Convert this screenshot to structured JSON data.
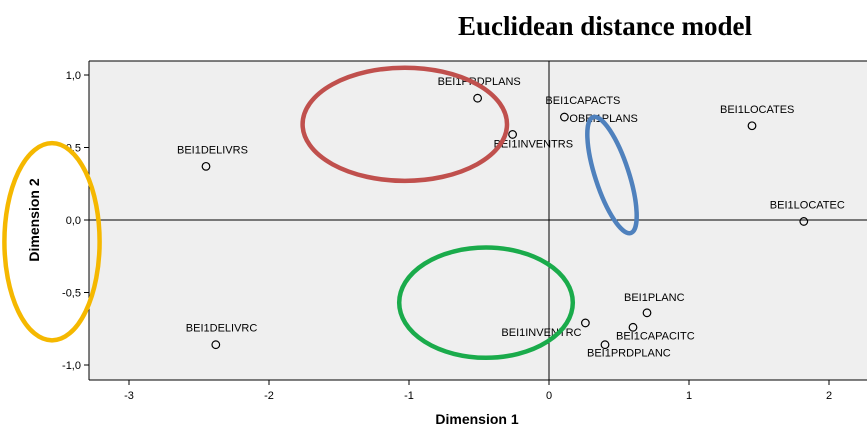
{
  "chart_data": {
    "type": "scatter",
    "title": "Euclidean distance model",
    "xlabel": "Dimension 1",
    "ylabel": "Dimension 2",
    "xlim": [
      -3.3,
      2.1
    ],
    "ylim": [
      -1.1,
      1.1
    ],
    "grid": false,
    "x_ticks": [
      -3,
      -2,
      -1,
      0,
      1,
      2
    ],
    "x_tick_labels": [
      "-3",
      "-2",
      "-1",
      "0",
      "1",
      "2"
    ],
    "y_ticks": [
      1.0,
      0.5,
      0.0,
      -0.5,
      -1.0
    ],
    "y_tick_labels": [
      "1,0",
      "0,5",
      "0,0",
      "-0,5",
      "-1,0"
    ],
    "points": [
      {
        "label": "BEI1PRDPLANS",
        "x": -0.51,
        "y": 0.84
      },
      {
        "label": "BEI1CAPACTS",
        "x": 0.11,
        "y": 0.71
      },
      {
        "label": "OBEI1PLANS",
        "x": 0.11,
        "y": 0.71
      },
      {
        "label": "BEI1INVENTRS",
        "x": -0.26,
        "y": 0.59
      },
      {
        "label": "BEI1LOCATES",
        "x": 1.45,
        "y": 0.65
      },
      {
        "label": "BEI1DELIVRS",
        "x": -2.45,
        "y": 0.37
      },
      {
        "label": "BEI1LOCATEC",
        "x": 1.82,
        "y": -0.01
      },
      {
        "label": "BEI1PLANC",
        "x": 0.7,
        "y": -0.64
      },
      {
        "label": "BEI1CAPACITC",
        "x": 0.6,
        "y": -0.74
      },
      {
        "label": "BEI1INVENTRC",
        "x": 0.26,
        "y": -0.71
      },
      {
        "label": "BEI1PRDPLANC",
        "x": 0.4,
        "y": -0.86
      },
      {
        "label": "BEI1DELIVRC",
        "x": -2.38,
        "y": -0.86
      }
    ],
    "annotations": [
      {
        "shape": "ellipse",
        "color": "#c0504d",
        "cx": -1.03,
        "cy": 0.66,
        "rx": 0.73,
        "ry": 0.39
      },
      {
        "shape": "ellipse",
        "color": "#4f81bd",
        "cx": 0.45,
        "cy": 0.31,
        "rx": 0.12,
        "ry": 0.42,
        "rotate": -18
      },
      {
        "shape": "ellipse",
        "color": "#1aab4b",
        "cx": -0.45,
        "cy": -0.57,
        "rx": 0.62,
        "ry": 0.38
      },
      {
        "shape": "ellipse",
        "color": "#f5b800",
        "cx": -3.55,
        "cy": -0.15,
        "rx": 0.34,
        "ry": 0.68
      }
    ],
    "colors": {
      "plot_background": "#efefef",
      "frame": "#000000",
      "marker": "#000000"
    }
  }
}
